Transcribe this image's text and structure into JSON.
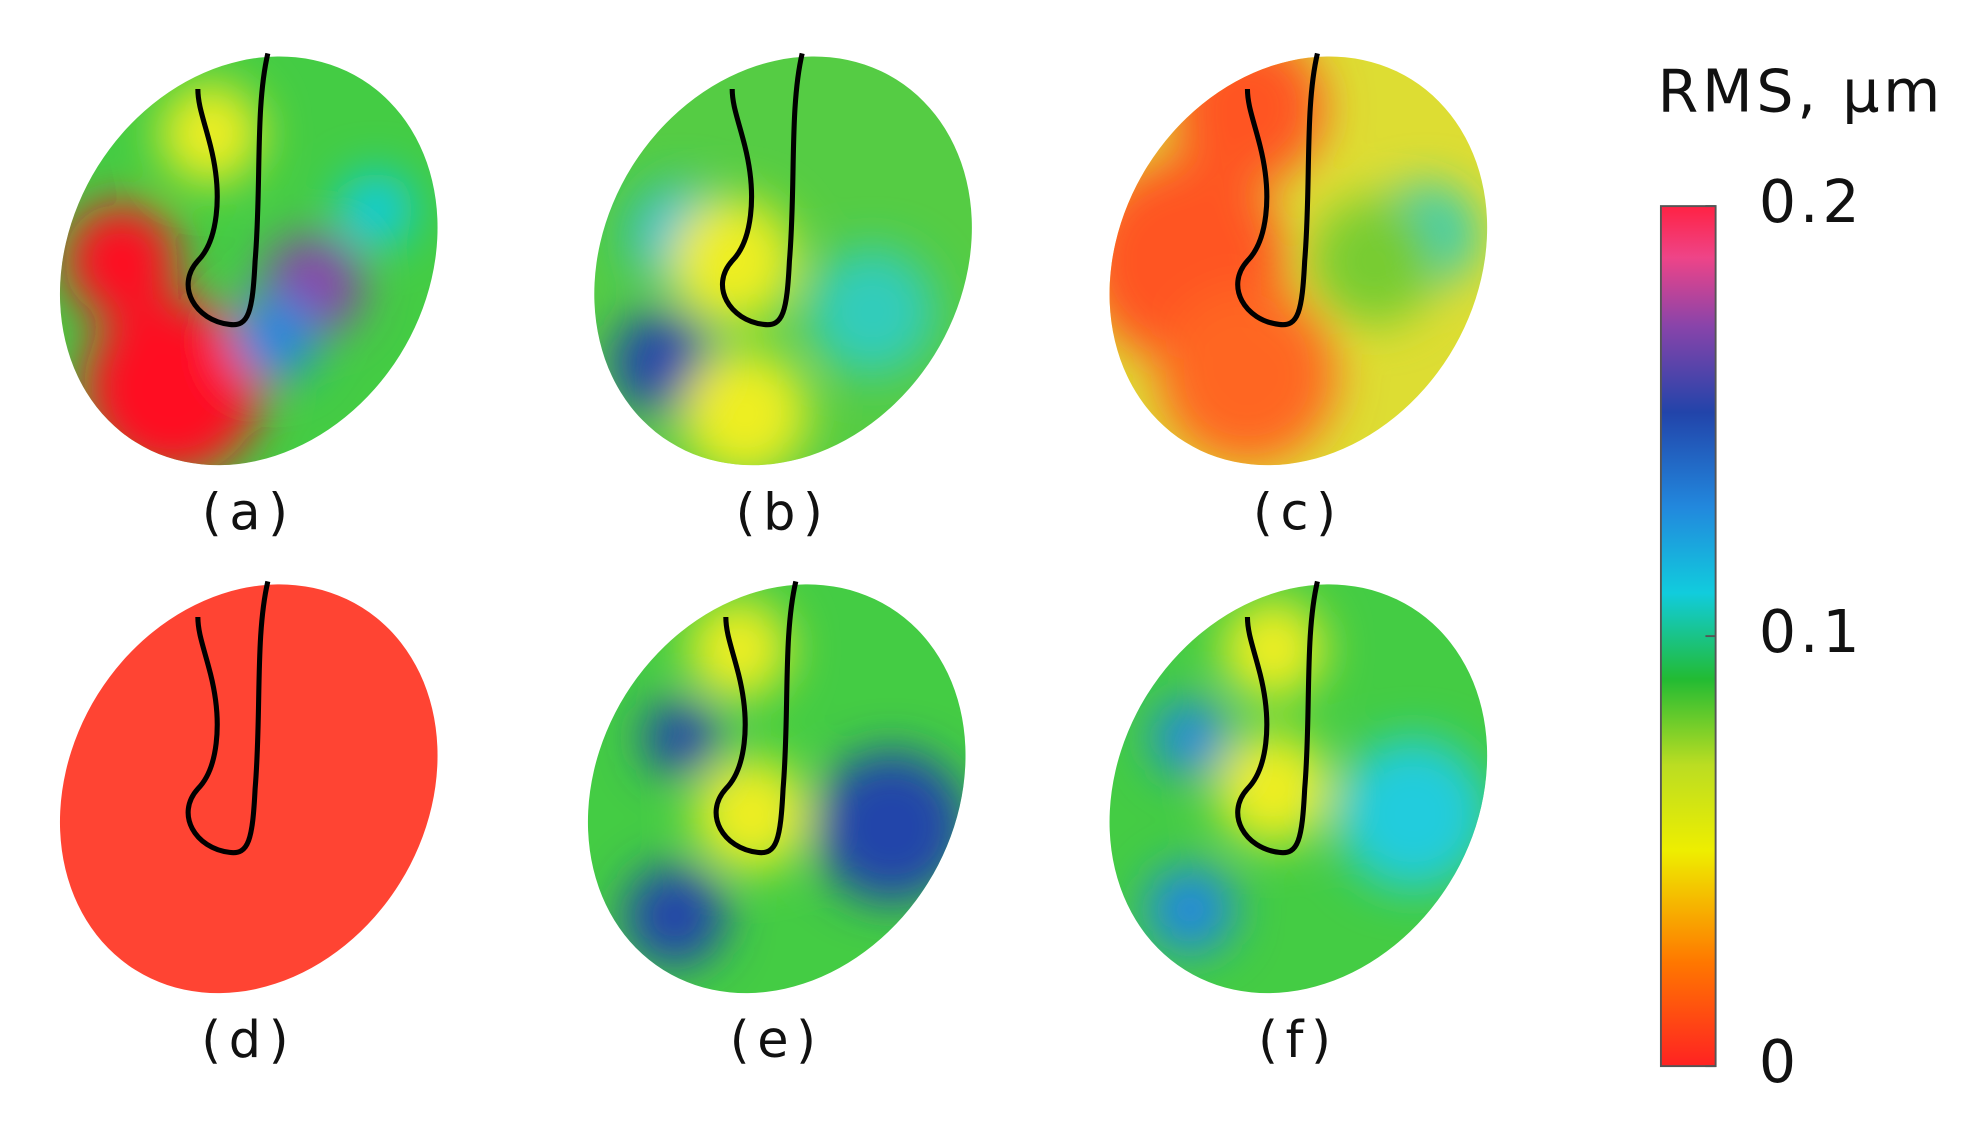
{
  "chart_data": {
    "type": "heatmap-panels",
    "panels": [
      {
        "label": "(a)"
      },
      {
        "label": "(b)"
      },
      {
        "label": "(c)"
      },
      {
        "label": "(d)"
      },
      {
        "label": "(e)"
      },
      {
        "label": "(f)"
      }
    ],
    "colorbar": {
      "title": "RMS, μm",
      "ylim": [
        0,
        0.2
      ],
      "yticks": [
        0,
        0.1,
        0.2
      ]
    }
  }
}
